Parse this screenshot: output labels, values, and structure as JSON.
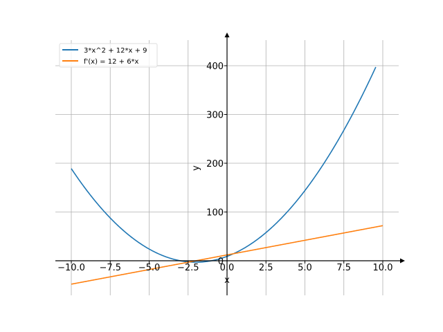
{
  "chart_data": {
    "type": "line",
    "title": "",
    "xlabel": "x",
    "ylabel": "y",
    "xlim": [
      -11,
      11.5
    ],
    "ylim": [
      -70,
      465
    ],
    "grid": true,
    "legend_placement": "top-left",
    "x_ticks": [
      -10.0,
      -7.5,
      -5.0,
      -2.5,
      0.0,
      2.5,
      5.0,
      7.5,
      10.0
    ],
    "x_tick_labels": [
      "−10.0",
      "−7.5",
      "−5.0",
      "−2.5",
      "0.0",
      "2.5",
      "5.0",
      "7.5",
      "10.0"
    ],
    "y_ticks": [
      0,
      100,
      200,
      300,
      400
    ],
    "y_tick_labels": [
      "0",
      "100",
      "200",
      "300",
      "400"
    ],
    "series": [
      {
        "name": "3*x^2 + 12*x + 9",
        "color": "#1f77b4",
        "expr": "quadratic",
        "coeffs": [
          3,
          12,
          9
        ],
        "x_range": [
          -10,
          10
        ],
        "y_max_shown": 400
      },
      {
        "name": "f'(x) = 12 + 6*x",
        "color": "#ff7f0e",
        "expr": "linear",
        "coeffs": [
          0,
          6,
          12
        ],
        "x_range": [
          -10,
          10
        ]
      }
    ]
  }
}
